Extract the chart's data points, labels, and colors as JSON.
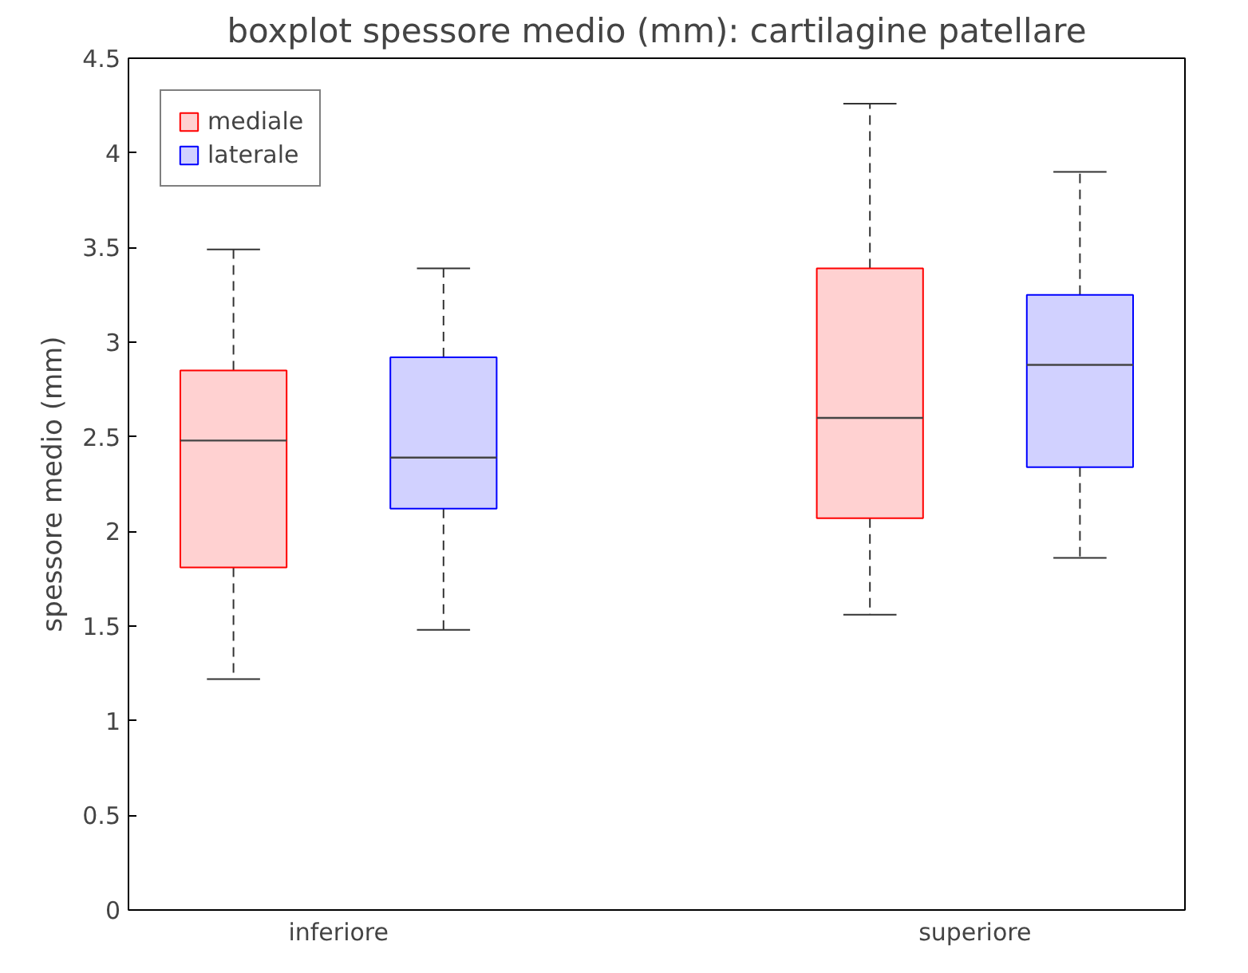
{
  "chart_data": {
    "type": "box",
    "title": "boxplot spessore medio (mm): cartilagine patellare",
    "ylabel": "spessore medio (mm)",
    "categories": [
      "inferiore",
      "superiore"
    ],
    "ylim": [
      0,
      4.5
    ],
    "yticks": [
      0,
      0.5,
      1,
      1.5,
      2,
      2.5,
      3,
      3.5,
      4,
      4.5
    ],
    "legend": "top left",
    "grid": false,
    "series": [
      {
        "name": "mediale",
        "color": "#ff0000",
        "boxes": [
          {
            "low": 1.22,
            "q1": 1.81,
            "median": 2.48,
            "q3": 2.85,
            "high": 3.49
          },
          {
            "low": 1.56,
            "q1": 2.07,
            "median": 2.6,
            "q3": 3.39,
            "high": 4.26
          }
        ]
      },
      {
        "name": "laterale",
        "color": "#0000ff",
        "boxes": [
          {
            "low": 1.48,
            "q1": 2.12,
            "median": 2.39,
            "q3": 2.92,
            "high": 3.39
          },
          {
            "low": 1.86,
            "q1": 2.34,
            "median": 2.88,
            "q3": 3.25,
            "high": 3.9
          }
        ]
      }
    ]
  }
}
